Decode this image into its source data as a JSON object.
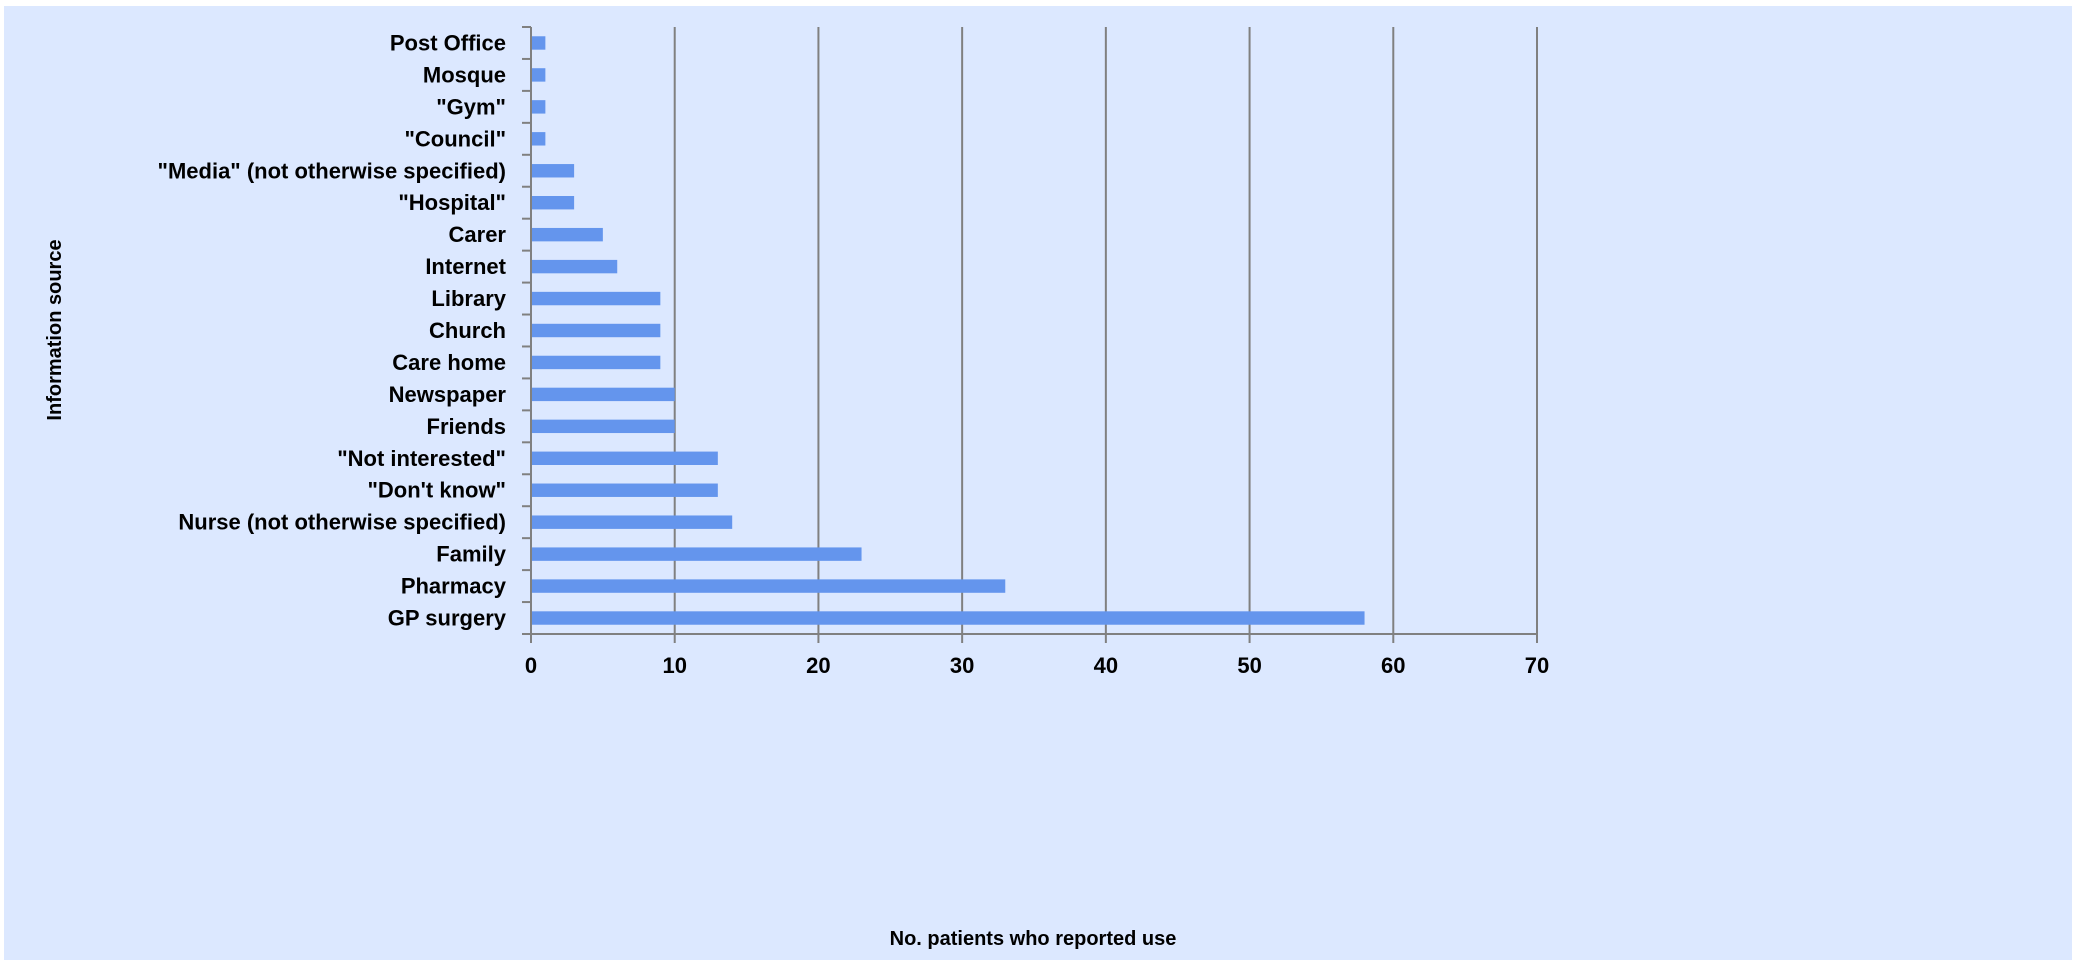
{
  "chart_data": {
    "type": "bar",
    "orientation": "horizontal",
    "title": "",
    "xlabel": "No. patients who reported use",
    "ylabel": "Information source",
    "xlim": [
      0,
      70
    ],
    "x_ticks": [
      "0",
      "10",
      "20",
      "30",
      "40",
      "50",
      "60",
      "70"
    ],
    "grid": "vertical",
    "legend": "none",
    "categories": [
      "Post Office",
      "Mosque",
      "\"Gym\"",
      "\"Council\"",
      "\"Media\" (not otherwise specified)",
      "\"Hospital\"",
      "Carer",
      "Internet",
      "Library",
      "Church",
      "Care home",
      "Newspaper",
      "Friends",
      "\"Not interested\"",
      "\"Don't know\"",
      "Nurse (not otherwise specified)",
      "Family",
      "Pharmacy",
      "GP surgery"
    ],
    "values": [
      1,
      1,
      1,
      1,
      3,
      3,
      5,
      6,
      9,
      9,
      9,
      10,
      10,
      13,
      13,
      14,
      23,
      33,
      58
    ],
    "colors": {
      "bar": "#6495ED",
      "background": "#DCE8FF",
      "gridline": "#808080",
      "axis": "#808080"
    }
  }
}
